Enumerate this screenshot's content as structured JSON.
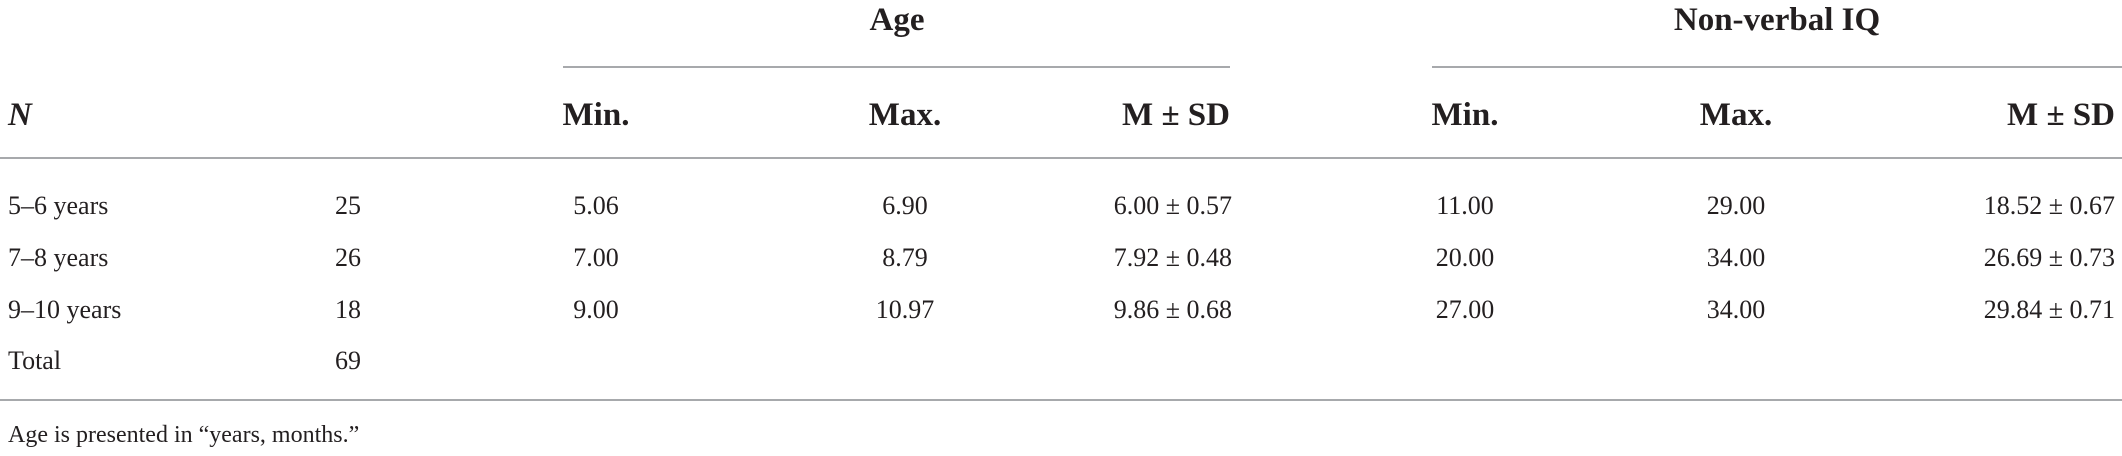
{
  "table": {
    "group_headers": [
      {
        "label": "Age"
      },
      {
        "label": "Non-verbal IQ"
      }
    ],
    "n_header": "N",
    "sub_headers": [
      "Min.",
      "Max.",
      "M ± SD",
      "Min.",
      "Max.",
      "M ± SD"
    ],
    "rows": [
      {
        "group": "5–6 years",
        "n": "25",
        "age_min": "5.06",
        "age_max": "6.90",
        "age_msd": "6.00 ± 0.57",
        "iq_min": "11.00",
        "iq_max": "29.00",
        "iq_msd": "18.52 ± 0.67"
      },
      {
        "group": "7–8 years",
        "n": "26",
        "age_min": "7.00",
        "age_max": "8.79",
        "age_msd": "7.92 ± 0.48",
        "iq_min": "20.00",
        "iq_max": "34.00",
        "iq_msd": "26.69 ± 0.73"
      },
      {
        "group": "9–10 years",
        "n": "18",
        "age_min": "9.00",
        "age_max": "10.97",
        "age_msd": "9.86 ± 0.68",
        "iq_min": "27.00",
        "iq_max": "34.00",
        "iq_msd": "29.84 ± 0.71"
      },
      {
        "group": "Total",
        "n": "69",
        "age_min": "",
        "age_max": "",
        "age_msd": "",
        "iq_min": "",
        "iq_max": "",
        "iq_msd": ""
      }
    ],
    "footnote": "Age is presented in “years, months.”"
  }
}
